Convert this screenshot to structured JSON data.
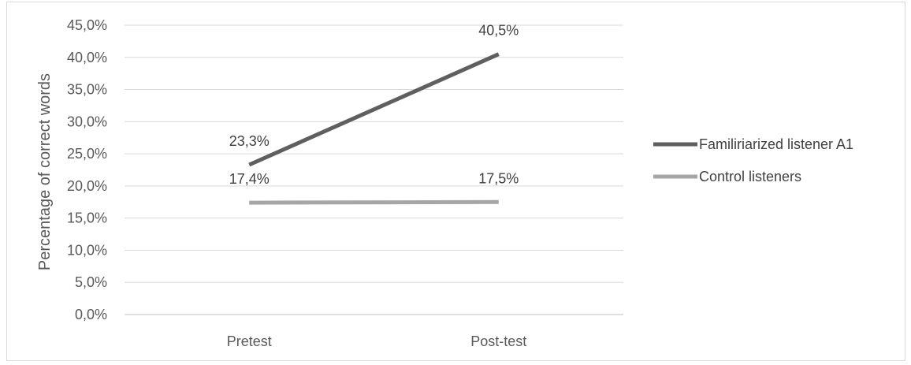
{
  "chart_data": {
    "type": "line",
    "title": "",
    "xlabel": "",
    "ylabel": "Percentage of correct words",
    "categories": [
      "Pretest",
      "Post-test"
    ],
    "ylim": [
      0,
      45
    ],
    "yticks": [
      "0,0%",
      "5,0%",
      "10,0%",
      "15,0%",
      "20,0%",
      "25,0%",
      "30,0%",
      "35,0%",
      "40,0%",
      "45,0%"
    ],
    "grid": true,
    "legend_position": "right",
    "series": [
      {
        "name": "Familiriarized listener A1",
        "values": [
          23.3,
          40.5
        ],
        "labels": [
          "23,3%",
          "40,5%"
        ],
        "color": "#5f5f5f"
      },
      {
        "name": "Control listeners",
        "values": [
          17.4,
          17.5
        ],
        "labels": [
          "17,4%",
          "17,5%"
        ],
        "color": "#a6a6a6"
      }
    ]
  }
}
